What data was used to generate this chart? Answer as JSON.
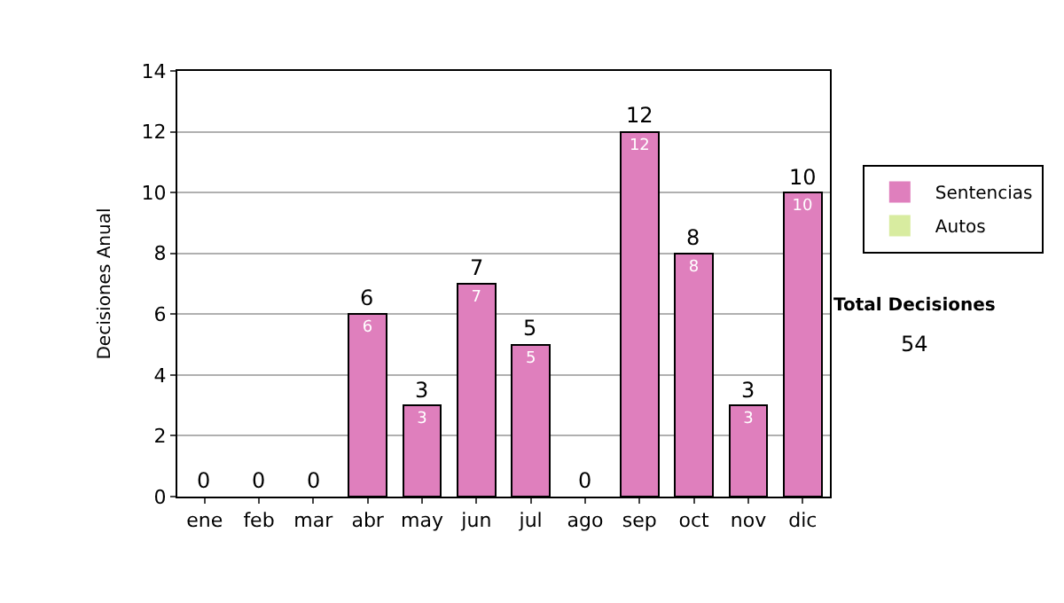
{
  "chart_data": {
    "type": "bar",
    "stacked": true,
    "ylabel": "Decisiones Anual",
    "categories": [
      "ene",
      "feb",
      "mar",
      "abr",
      "may",
      "jun",
      "jul",
      "ago",
      "sep",
      "oct",
      "nov",
      "dic"
    ],
    "series": [
      {
        "name": "Sentencias",
        "color": "#df7fbd",
        "values": [
          0,
          0,
          0,
          6,
          3,
          7,
          5,
          0,
          12,
          8,
          3,
          10
        ],
        "value_labels": [
          null,
          null,
          null,
          "6",
          "3",
          "7",
          "5",
          null,
          "12",
          "8",
          "3",
          "10"
        ]
      },
      {
        "name": "Autos",
        "color": "#d8eca0",
        "values": [
          0,
          0,
          0,
          0,
          0,
          0,
          0,
          0,
          0,
          0,
          0,
          0
        ]
      }
    ],
    "totals": [
      "0",
      "0",
      "0",
      "6",
      "3",
      "7",
      "5",
      "0",
      "12",
      "8",
      "3",
      "10"
    ],
    "ylim": [
      0,
      14
    ],
    "yticks": [
      0,
      2,
      4,
      6,
      8,
      10,
      12,
      14
    ],
    "grid": "y",
    "legend": "right",
    "annotations": [
      "Total Decisiones",
      "54"
    ]
  }
}
